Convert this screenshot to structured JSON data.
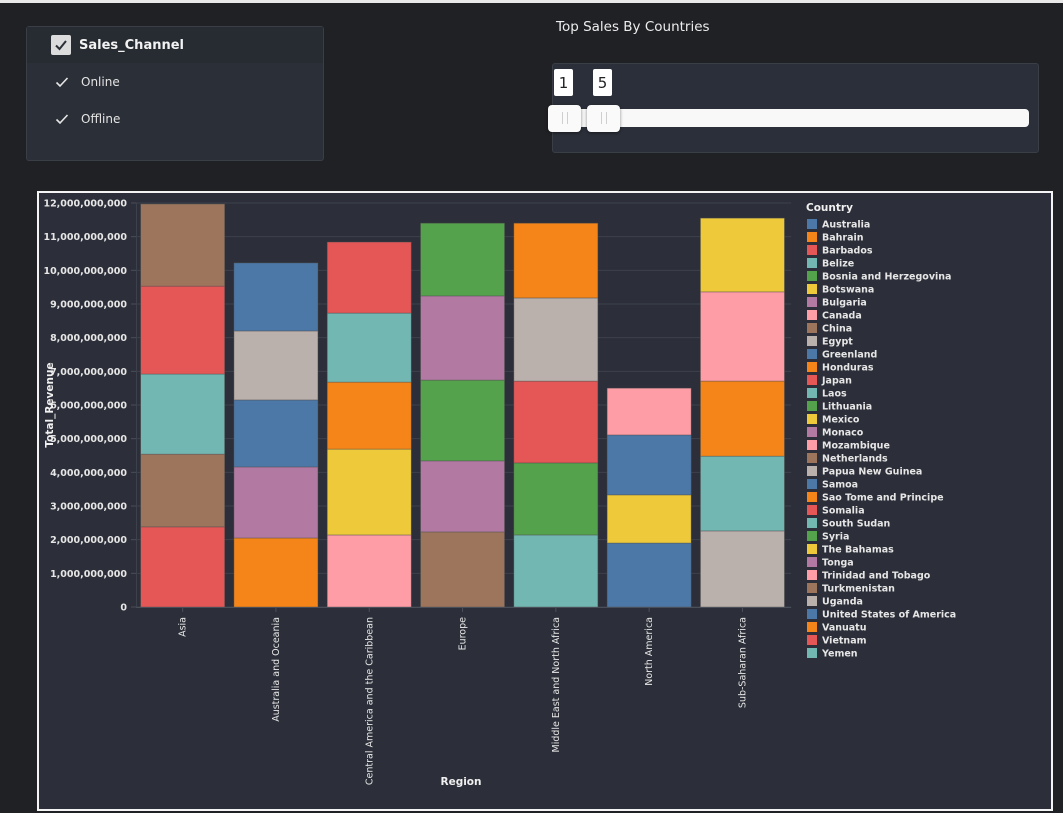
{
  "filter": {
    "title": "Sales_Channel",
    "options": [
      {
        "label": "Online",
        "checked": true
      },
      {
        "label": "Offline",
        "checked": true
      }
    ]
  },
  "slider": {
    "title": "Top Sales By  Countries",
    "low": "1",
    "high": "5",
    "low_value": 1,
    "high_value": 5
  },
  "colors": {
    "background": "#202125",
    "panel": "#2c2f39",
    "accent_check": "#dcdcdc"
  },
  "chart_data": {
    "type": "bar",
    "stacked": true,
    "title": "",
    "xlabel": "Region",
    "ylabel": "Total_Revenue",
    "ylim": [
      0,
      12000000000
    ],
    "yticks": [
      0,
      1000000000,
      2000000000,
      3000000000,
      4000000000,
      5000000000,
      6000000000,
      7000000000,
      8000000000,
      9000000000,
      10000000000,
      11000000000,
      12000000000
    ],
    "ytick_labels": [
      "0",
      "1,000,000,000",
      "2,000,000,000",
      "3,000,000,000",
      "4,000,000,000",
      "5,000,000,000",
      "6,000,000,000",
      "7,000,000,000",
      "8,000,000,000",
      "9,000,000,000",
      "10,000,000,000",
      "11,000,000,000",
      "12,000,000,000"
    ],
    "grid": true,
    "legend_title": "Country",
    "legend_position": "right",
    "categories": [
      "Asia",
      "Australia and Oceania",
      "Central America and the Caribbean",
      "Europe",
      "Middle East and North Africa",
      "North America",
      "Sub-Saharan Africa"
    ],
    "legend": [
      {
        "name": "Australia",
        "color": "#4c78a8"
      },
      {
        "name": "Bahrain",
        "color": "#f58518"
      },
      {
        "name": "Barbados",
        "color": "#e45756"
      },
      {
        "name": "Belize",
        "color": "#72b7b2"
      },
      {
        "name": "Bosnia and Herzegovina",
        "color": "#54a24b"
      },
      {
        "name": "Botswana",
        "color": "#eeca3b"
      },
      {
        "name": "Bulgaria",
        "color": "#b279a2"
      },
      {
        "name": "Canada",
        "color": "#ff9da6"
      },
      {
        "name": "China",
        "color": "#9d755d"
      },
      {
        "name": "Egypt",
        "color": "#bab0ac"
      },
      {
        "name": "Greenland",
        "color": "#4c78a8"
      },
      {
        "name": "Honduras",
        "color": "#f58518"
      },
      {
        "name": "Japan",
        "color": "#e45756"
      },
      {
        "name": "Laos",
        "color": "#72b7b2"
      },
      {
        "name": "Lithuania",
        "color": "#54a24b"
      },
      {
        "name": "Mexico",
        "color": "#eeca3b"
      },
      {
        "name": "Monaco",
        "color": "#b279a2"
      },
      {
        "name": "Mozambique",
        "color": "#ff9da6"
      },
      {
        "name": "Netherlands",
        "color": "#9d755d"
      },
      {
        "name": "Papua New Guinea",
        "color": "#bab0ac"
      },
      {
        "name": "Samoa",
        "color": "#4c78a8"
      },
      {
        "name": "Sao Tome and Principe",
        "color": "#f58518"
      },
      {
        "name": "Somalia",
        "color": "#e45756"
      },
      {
        "name": "South Sudan",
        "color": "#72b7b2"
      },
      {
        "name": "Syria",
        "color": "#54a24b"
      },
      {
        "name": "The Bahamas",
        "color": "#eeca3b"
      },
      {
        "name": "Tonga",
        "color": "#b279a2"
      },
      {
        "name": "Trinidad and Tobago",
        "color": "#ff9da6"
      },
      {
        "name": "Turkmenistan",
        "color": "#9d755d"
      },
      {
        "name": "Uganda",
        "color": "#bab0ac"
      },
      {
        "name": "United States of America",
        "color": "#4c78a8"
      },
      {
        "name": "Vanuatu",
        "color": "#f58518"
      },
      {
        "name": "Vietnam",
        "color": "#e45756"
      },
      {
        "name": "Yemen",
        "color": "#72b7b2"
      }
    ],
    "stacks": [
      {
        "category": "Asia",
        "segments": [
          {
            "country": "Japan",
            "value": 2380000000
          },
          {
            "country": "China",
            "value": 2160000000
          },
          {
            "country": "Laos",
            "value": 2380000000
          },
          {
            "country": "Vietnam",
            "value": 2610000000
          },
          {
            "country": "Turkmenistan",
            "value": 2440000000
          }
        ]
      },
      {
        "category": "Australia and Oceania",
        "segments": [
          {
            "country": "Vanuatu",
            "value": 2050000000
          },
          {
            "country": "Tonga",
            "value": 2110000000
          },
          {
            "country": "Samoa",
            "value": 1990000000
          },
          {
            "country": "Papua New Guinea",
            "value": 2050000000
          },
          {
            "country": "Australia",
            "value": 2020000000
          }
        ]
      },
      {
        "category": "Central America and the Caribbean",
        "segments": [
          {
            "country": "Trinidad and Tobago",
            "value": 2140000000
          },
          {
            "country": "The Bahamas",
            "value": 2550000000
          },
          {
            "country": "Honduras",
            "value": 1990000000
          },
          {
            "country": "Belize",
            "value": 2050000000
          },
          {
            "country": "Barbados",
            "value": 2110000000
          }
        ]
      },
      {
        "category": "Europe",
        "segments": [
          {
            "country": "Netherlands",
            "value": 2230000000
          },
          {
            "country": "Monaco",
            "value": 2110000000
          },
          {
            "country": "Lithuania",
            "value": 2400000000
          },
          {
            "country": "Bulgaria",
            "value": 2500000000
          },
          {
            "country": "Bosnia and Herzegovina",
            "value": 2160000000
          }
        ]
      },
      {
        "category": "Middle East and North Africa",
        "segments": [
          {
            "country": "Yemen",
            "value": 2140000000
          },
          {
            "country": "Syria",
            "value": 2140000000
          },
          {
            "country": "Somalia",
            "value": 2430000000
          },
          {
            "country": "Egypt",
            "value": 2470000000
          },
          {
            "country": "Bahrain",
            "value": 2220000000
          }
        ]
      },
      {
        "category": "North America",
        "segments": [
          {
            "country": "United States of America",
            "value": 1900000000
          },
          {
            "country": "Mexico",
            "value": 1430000000
          },
          {
            "country": "Greenland",
            "value": 1780000000
          },
          {
            "country": "Canada",
            "value": 1390000000
          }
        ]
      },
      {
        "category": "Sub-Saharan Africa",
        "segments": [
          {
            "country": "Uganda",
            "value": 2260000000
          },
          {
            "country": "South Sudan",
            "value": 2220000000
          },
          {
            "country": "Sao Tome and Principe",
            "value": 2230000000
          },
          {
            "country": "Mozambique",
            "value": 2650000000
          },
          {
            "country": "Botswana",
            "value": 2190000000
          }
        ]
      }
    ]
  }
}
